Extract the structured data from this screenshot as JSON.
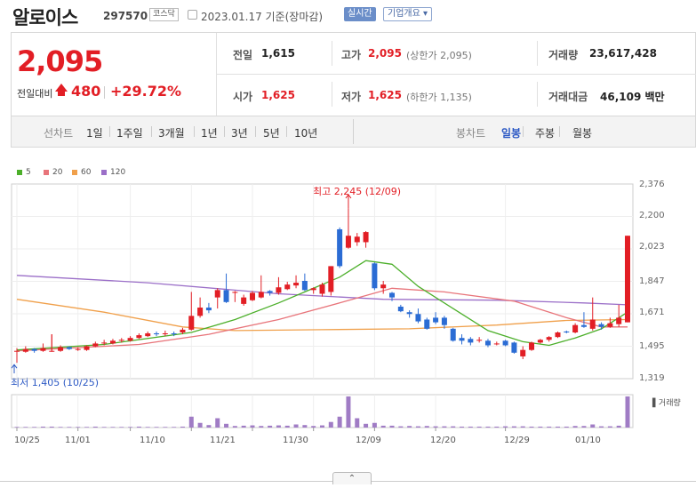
{
  "header": {
    "name": "알로이스",
    "code": "297570",
    "market": "코스닥",
    "date": "2023.01.17 기준(장마감)",
    "realtime_btn": "실시간",
    "company_btn": "기업개요 ▾"
  },
  "price": {
    "current": "2,095",
    "change_label": "전일대비",
    "change": "480",
    "percent": "+29.72%",
    "color_up": "#e21e25"
  },
  "stats": {
    "prev_close_label": "전일",
    "prev_close": "1,615",
    "high_label": "고가",
    "high": "2,095",
    "high_sub": "(상한가 2,095)",
    "volume_label": "거래량",
    "volume": "23,617,428",
    "open_label": "시가",
    "open": "1,625",
    "low_label": "저가",
    "low": "1,625",
    "low_sub": "(하한가 1,135)",
    "amount_label": "거래대금",
    "amount": "46,109 백만"
  },
  "toolbar": {
    "line_label": "선차트",
    "ranges": [
      "1일",
      "1주일",
      "3개월",
      "1년",
      "3년",
      "5년",
      "10년"
    ],
    "candle_label": "봉차트",
    "periods": [
      "일봉",
      "주봉",
      "월봉"
    ],
    "active_period": "일봉"
  },
  "chart_data": {
    "type": "candlestick",
    "legend": [
      {
        "name": "5",
        "color": "#4caf2a"
      },
      {
        "name": "20",
        "color": "#e8747a"
      },
      {
        "name": "60",
        "color": "#f0a04b"
      },
      {
        "name": "120",
        "color": "#9b6fc8"
      }
    ],
    "y_ticks": [
      "2,376",
      "2,200",
      "2,023",
      "1,847",
      "1,671",
      "1,495",
      "1,319"
    ],
    "ylim": [
      1319,
      2376
    ],
    "x_ticks": [
      "10/25",
      "11/01",
      "11/10",
      "11/21",
      "11/30",
      "12/09",
      "12/20",
      "12/29",
      "01/10"
    ],
    "high_annotation": "최고 2,245 (12/09)",
    "low_annotation": "최저 1,405 (10/25)",
    "volume_label": "거래량",
    "candles": [
      {
        "o": 1470,
        "c": 1470,
        "h": 1485,
        "l": 1405,
        "v": 0.02
      },
      {
        "o": 1465,
        "c": 1480,
        "h": 1495,
        "l": 1460,
        "v": 0.02
      },
      {
        "o": 1480,
        "c": 1470,
        "h": 1485,
        "l": 1460,
        "v": 0.02
      },
      {
        "o": 1470,
        "c": 1485,
        "h": 1510,
        "l": 1465,
        "v": 0.03
      },
      {
        "o": 1470,
        "c": 1470,
        "h": 1560,
        "l": 1465,
        "v": 0.03
      },
      {
        "o": 1470,
        "c": 1490,
        "h": 1500,
        "l": 1465,
        "v": 0.02
      },
      {
        "o": 1490,
        "c": 1480,
        "h": 1495,
        "l": 1475,
        "v": 0.02
      },
      {
        "o": 1475,
        "c": 1480,
        "h": 1490,
        "l": 1470,
        "v": 0.02
      },
      {
        "o": 1475,
        "c": 1495,
        "h": 1500,
        "l": 1470,
        "v": 0.02
      },
      {
        "o": 1495,
        "c": 1510,
        "h": 1520,
        "l": 1490,
        "v": 0.03
      },
      {
        "o": 1510,
        "c": 1515,
        "h": 1530,
        "l": 1500,
        "v": 0.02
      },
      {
        "o": 1510,
        "c": 1525,
        "h": 1535,
        "l": 1505,
        "v": 0.02
      },
      {
        "o": 1525,
        "c": 1530,
        "h": 1540,
        "l": 1515,
        "v": 0.02
      },
      {
        "o": 1525,
        "c": 1540,
        "h": 1550,
        "l": 1520,
        "v": 0.02
      },
      {
        "o": 1540,
        "c": 1555,
        "h": 1565,
        "l": 1535,
        "v": 0.03
      },
      {
        "o": 1550,
        "c": 1565,
        "h": 1575,
        "l": 1545,
        "v": 0.02
      },
      {
        "o": 1565,
        "c": 1560,
        "h": 1575,
        "l": 1550,
        "v": 0.02
      },
      {
        "o": 1560,
        "c": 1565,
        "h": 1580,
        "l": 1550,
        "v": 0.02
      },
      {
        "o": 1565,
        "c": 1560,
        "h": 1575,
        "l": 1550,
        "v": 0.02
      },
      {
        "o": 1570,
        "c": 1585,
        "h": 1595,
        "l": 1560,
        "v": 0.03
      },
      {
        "o": 1585,
        "c": 1660,
        "h": 1790,
        "l": 1580,
        "v": 0.35
      },
      {
        "o": 1660,
        "c": 1705,
        "h": 1760,
        "l": 1650,
        "v": 0.15
      },
      {
        "o": 1705,
        "c": 1690,
        "h": 1730,
        "l": 1675,
        "v": 0.08
      },
      {
        "o": 1760,
        "c": 1800,
        "h": 1810,
        "l": 1700,
        "v": 0.3
      },
      {
        "o": 1800,
        "c": 1735,
        "h": 1890,
        "l": 1730,
        "v": 0.12
      },
      {
        "o": 1785,
        "c": 1790,
        "h": 1795,
        "l": 1735,
        "v": 0.05
      },
      {
        "o": 1725,
        "c": 1760,
        "h": 1775,
        "l": 1715,
        "v": 0.06
      },
      {
        "o": 1745,
        "c": 1785,
        "h": 1795,
        "l": 1740,
        "v": 0.07
      },
      {
        "o": 1760,
        "c": 1790,
        "h": 1880,
        "l": 1755,
        "v": 0.05
      },
      {
        "o": 1795,
        "c": 1785,
        "h": 1800,
        "l": 1770,
        "v": 0.06
      },
      {
        "o": 1785,
        "c": 1815,
        "h": 1870,
        "l": 1775,
        "v": 0.07
      },
      {
        "o": 1805,
        "c": 1830,
        "h": 1845,
        "l": 1800,
        "v": 0.06
      },
      {
        "o": 1825,
        "c": 1840,
        "h": 1880,
        "l": 1810,
        "v": 0.1
      },
      {
        "o": 1850,
        "c": 1800,
        "h": 1890,
        "l": 1795,
        "v": 0.08
      },
      {
        "o": 1800,
        "c": 1810,
        "h": 1815,
        "l": 1780,
        "v": 0.05
      },
      {
        "o": 1780,
        "c": 1830,
        "h": 1840,
        "l": 1765,
        "v": 0.07
      },
      {
        "o": 1790,
        "c": 1930,
        "h": 1930,
        "l": 1770,
        "v": 0.18
      },
      {
        "o": 2130,
        "c": 1930,
        "h": 2140,
        "l": 1920,
        "v": 0.35
      },
      {
        "o": 2030,
        "c": 2095,
        "h": 2245,
        "l": 2025,
        "v": 1.0
      },
      {
        "o": 2060,
        "c": 2090,
        "h": 2110,
        "l": 2040,
        "v": 0.3
      },
      {
        "o": 2060,
        "c": 2115,
        "h": 2120,
        "l": 2030,
        "v": 0.12
      },
      {
        "o": 1945,
        "c": 1810,
        "h": 1950,
        "l": 1800,
        "v": 0.15
      },
      {
        "o": 1810,
        "c": 1830,
        "h": 1850,
        "l": 1780,
        "v": 0.06
      },
      {
        "o": 1785,
        "c": 1760,
        "h": 1790,
        "l": 1740,
        "v": 0.06
      },
      {
        "o": 1710,
        "c": 1685,
        "h": 1720,
        "l": 1680,
        "v": 0.04
      },
      {
        "o": 1680,
        "c": 1670,
        "h": 1690,
        "l": 1650,
        "v": 0.05
      },
      {
        "o": 1670,
        "c": 1630,
        "h": 1700,
        "l": 1620,
        "v": 0.04
      },
      {
        "o": 1640,
        "c": 1590,
        "h": 1650,
        "l": 1585,
        "v": 0.05
      },
      {
        "o": 1650,
        "c": 1625,
        "h": 1680,
        "l": 1615,
        "v": 0.04
      },
      {
        "o": 1650,
        "c": 1610,
        "h": 1660,
        "l": 1590,
        "v": 0.04
      },
      {
        "o": 1590,
        "c": 1525,
        "h": 1595,
        "l": 1520,
        "v": 0.04
      },
      {
        "o": 1540,
        "c": 1525,
        "h": 1560,
        "l": 1505,
        "v": 0.03
      },
      {
        "o": 1535,
        "c": 1515,
        "h": 1545,
        "l": 1500,
        "v": 0.03
      },
      {
        "o": 1525,
        "c": 1530,
        "h": 1545,
        "l": 1515,
        "v": 0.03
      },
      {
        "o": 1525,
        "c": 1500,
        "h": 1535,
        "l": 1490,
        "v": 0.03
      },
      {
        "o": 1510,
        "c": 1510,
        "h": 1520,
        "l": 1500,
        "v": 0.03
      },
      {
        "o": 1525,
        "c": 1500,
        "h": 1530,
        "l": 1495,
        "v": 0.04
      },
      {
        "o": 1515,
        "c": 1460,
        "h": 1520,
        "l": 1455,
        "v": 0.04
      },
      {
        "o": 1440,
        "c": 1475,
        "h": 1495,
        "l": 1425,
        "v": 0.04
      },
      {
        "o": 1475,
        "c": 1515,
        "h": 1520,
        "l": 1470,
        "v": 0.03
      },
      {
        "o": 1515,
        "c": 1530,
        "h": 1535,
        "l": 1510,
        "v": 0.03
      },
      {
        "o": 1530,
        "c": 1545,
        "h": 1550,
        "l": 1520,
        "v": 0.03
      },
      {
        "o": 1545,
        "c": 1570,
        "h": 1575,
        "l": 1540,
        "v": 0.03
      },
      {
        "o": 1575,
        "c": 1570,
        "h": 1580,
        "l": 1565,
        "v": 0.03
      },
      {
        "o": 1570,
        "c": 1610,
        "h": 1620,
        "l": 1565,
        "v": 0.05
      },
      {
        "o": 1610,
        "c": 1600,
        "h": 1680,
        "l": 1595,
        "v": 0.05
      },
      {
        "o": 1590,
        "c": 1640,
        "h": 1760,
        "l": 1580,
        "v": 0.1
      },
      {
        "o": 1615,
        "c": 1600,
        "h": 1625,
        "l": 1585,
        "v": 0.04
      },
      {
        "o": 1600,
        "c": 1620,
        "h": 1650,
        "l": 1595,
        "v": 0.04
      },
      {
        "o": 1615,
        "c": 1650,
        "h": 1720,
        "l": 1600,
        "v": 0.06
      },
      {
        "o": 1625,
        "c": 2095,
        "h": 2095,
        "l": 1625,
        "v": 1.0
      }
    ],
    "ma5": [
      [
        0,
        1475
      ],
      [
        10,
        1505
      ],
      [
        20,
        1570
      ],
      [
        25,
        1640
      ],
      [
        30,
        1730
      ],
      [
        33,
        1790
      ],
      [
        37,
        1870
      ],
      [
        40,
        1960
      ],
      [
        43,
        1940
      ],
      [
        46,
        1820
      ],
      [
        50,
        1700
      ],
      [
        54,
        1580
      ],
      [
        58,
        1520
      ],
      [
        61,
        1500
      ],
      [
        64,
        1540
      ],
      [
        67,
        1590
      ],
      [
        70,
        1680
      ]
    ],
    "ma20": [
      [
        0,
        1470
      ],
      [
        14,
        1505
      ],
      [
        22,
        1560
      ],
      [
        30,
        1640
      ],
      [
        37,
        1730
      ],
      [
        43,
        1810
      ],
      [
        49,
        1790
      ],
      [
        57,
        1740
      ],
      [
        63,
        1650
      ],
      [
        67,
        1600
      ],
      [
        70,
        1600
      ]
    ],
    "ma60": [
      [
        0,
        1750
      ],
      [
        10,
        1680
      ],
      [
        19,
        1600
      ],
      [
        25,
        1580
      ],
      [
        35,
        1585
      ],
      [
        45,
        1590
      ],
      [
        55,
        1610
      ],
      [
        63,
        1635
      ],
      [
        70,
        1640
      ]
    ],
    "ma120": [
      [
        0,
        1880
      ],
      [
        15,
        1840
      ],
      [
        30,
        1780
      ],
      [
        42,
        1750
      ],
      [
        55,
        1745
      ],
      [
        65,
        1730
      ],
      [
        70,
        1720
      ]
    ]
  }
}
